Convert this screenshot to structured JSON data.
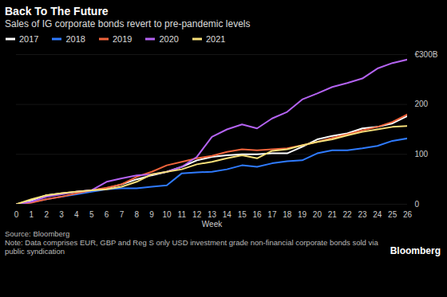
{
  "chart_data": {
    "type": "line",
    "title": "Back To The Future",
    "subtitle": "Sales of IG corporate bonds revert to pre-pandemic levels",
    "x": [
      0,
      1,
      2,
      3,
      4,
      5,
      6,
      7,
      8,
      9,
      10,
      11,
      12,
      13,
      14,
      15,
      16,
      17,
      18,
      19,
      20,
      21,
      22,
      23,
      24,
      25,
      26
    ],
    "xlim": [
      0,
      26
    ],
    "xticks": [
      0,
      1,
      2,
      3,
      4,
      5,
      6,
      7,
      8,
      9,
      10,
      11,
      12,
      13,
      14,
      15,
      16,
      17,
      18,
      19,
      20,
      21,
      22,
      23,
      24,
      25,
      26
    ],
    "x_label": "Week",
    "ylim": [
      0,
      300
    ],
    "yticks": [
      0,
      100,
      200,
      {
        "value": 300,
        "label": "€300B"
      }
    ],
    "grid": true,
    "series": [
      {
        "name": "2017",
        "color": "#ffffff",
        "values": [
          0,
          8,
          18,
          22,
          25,
          28,
          32,
          40,
          50,
          58,
          65,
          75,
          88,
          95,
          98,
          100,
          100,
          102,
          102,
          115,
          130,
          137,
          142,
          152,
          155,
          162,
          177
        ]
      },
      {
        "name": "2018",
        "color": "#2f7bff",
        "values": [
          0,
          4,
          10,
          15,
          20,
          25,
          30,
          32,
          32,
          35,
          38,
          62,
          64,
          65,
          70,
          78,
          75,
          82,
          86,
          88,
          102,
          108,
          108,
          112,
          117,
          127,
          132
        ]
      },
      {
        "name": "2019",
        "color": "#f0643c",
        "values": [
          0,
          3,
          10,
          15,
          22,
          28,
          33,
          40,
          55,
          65,
          78,
          85,
          92,
          97,
          105,
          110,
          108,
          110,
          112,
          118,
          125,
          133,
          140,
          148,
          155,
          165,
          180
        ]
      },
      {
        "name": "2020",
        "color": "#b463f2",
        "values": [
          0,
          5,
          15,
          20,
          25,
          28,
          45,
          52,
          58,
          60,
          65,
          75,
          95,
          135,
          150,
          160,
          152,
          172,
          185,
          210,
          222,
          235,
          243,
          252,
          272,
          283,
          290
        ]
      },
      {
        "name": "2021",
        "color": "#f7e07a",
        "values": [
          0,
          10,
          18,
          22,
          25,
          28,
          30,
          35,
          45,
          60,
          65,
          70,
          80,
          85,
          92,
          98,
          92,
          107,
          110,
          118,
          125,
          130,
          138,
          145,
          150,
          155,
          157
        ]
      }
    ],
    "source": "Source: Bloomberg",
    "note": "Note: Data comprises EUR, GBP and Reg S only USD investment grade non-financial corporate bonds sold via public syndication",
    "logo": "Bloomberg"
  }
}
